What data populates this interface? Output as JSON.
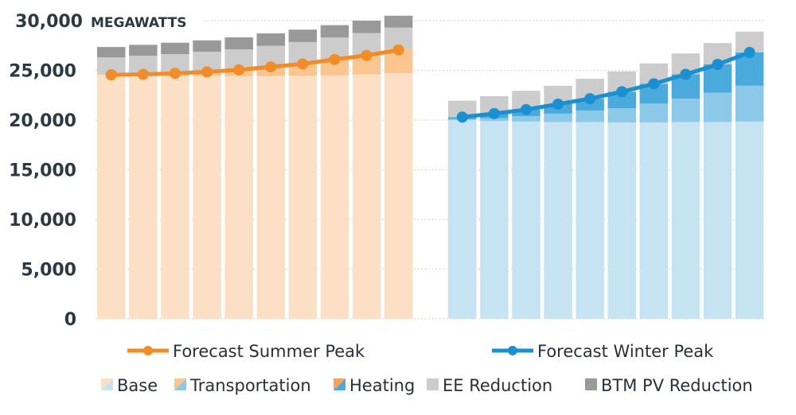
{
  "chart_data": {
    "type": "bar",
    "title": "",
    "ylabel": "MEGAWATTS",
    "xlabel": "",
    "ylim": [
      0,
      30000
    ],
    "yticks": [
      0,
      5000,
      10000,
      15000,
      20000,
      25000,
      30000
    ],
    "ytick_labels": [
      "0",
      "5,000",
      "10,000",
      "15,000",
      "20,000",
      "25,000",
      "30,000"
    ],
    "grid": true,
    "stacked": true,
    "groups": [
      {
        "name": "Summer",
        "bar_count": 10,
        "series": [
          {
            "name": "Base",
            "color": "#fce0c6",
            "values": [
              24550,
              24500,
              24480,
              24450,
              24420,
              24420,
              24450,
              24500,
              24580,
              24700
            ]
          },
          {
            "name": "Transportation",
            "color": "#fbc58f",
            "values": [
              50,
              120,
              250,
              420,
              650,
              950,
              1250,
              1650,
              2020,
              2450
            ]
          },
          {
            "name": "Heating",
            "color": "#f7a35c",
            "values": [
              0,
              0,
              0,
              0,
              0,
              0,
              0,
              0,
              0,
              0
            ]
          },
          {
            "name": "EE Reduction",
            "color": "#cccccc",
            "values": [
              1700,
              1850,
              1900,
              2000,
              2050,
              2100,
              2150,
              2150,
              2150,
              2150
            ]
          },
          {
            "name": "BTM PV Reduction",
            "color": "#999999",
            "values": [
              1050,
              1100,
              1150,
              1150,
              1200,
              1250,
              1250,
              1250,
              1250,
              1200
            ]
          }
        ],
        "line": {
          "name": "Forecast Summer Peak",
          "color": "#f28c28",
          "values": [
            24550,
            24600,
            24700,
            24850,
            25050,
            25350,
            25650,
            26100,
            26500,
            27050
          ]
        }
      },
      {
        "name": "Winter",
        "bar_count": 10,
        "series": [
          {
            "name": "Base",
            "color": "#c6e3f4",
            "values": [
              20000,
              19900,
              19850,
              19800,
              19800,
              19750,
              19750,
              19800,
              19800,
              19850
            ]
          },
          {
            "name": "Transportation",
            "color": "#8cc8e8",
            "values": [
              100,
              300,
              550,
              850,
              1150,
              1450,
              1900,
              2350,
              2950,
              3600
            ]
          },
          {
            "name": "Heating",
            "color": "#4aaadc",
            "values": [
              200,
              450,
              650,
              950,
              1200,
              1650,
              2000,
              2450,
              2850,
              3350
            ]
          },
          {
            "name": "EE Reduction",
            "color": "#cccccc",
            "values": [
              1650,
              1750,
              1900,
              1850,
              2000,
              2050,
              2050,
              2100,
              2150,
              2100
            ]
          },
          {
            "name": "BTM PV Reduction",
            "color": "#999999",
            "values": [
              0,
              0,
              0,
              0,
              0,
              0,
              0,
              0,
              0,
              0
            ]
          }
        ],
        "line": {
          "name": "Forecast Winter Peak",
          "color": "#1a8fd1",
          "values": [
            20300,
            20650,
            21050,
            21600,
            22150,
            22850,
            23650,
            24600,
            25600,
            26800
          ]
        }
      }
    ],
    "legend": {
      "placement": "bottom",
      "lines": [
        "Forecast Summer Peak",
        "Forecast Winter Peak"
      ],
      "areas": [
        "Base",
        "Transportation",
        "Heating",
        "EE Reduction",
        "BTM PV Reduction"
      ]
    }
  },
  "legend_swatches": {
    "Base": [
      "#fce0c6",
      "#c6e3f4"
    ],
    "Transportation": [
      "#fbc58f",
      "#8cc8e8"
    ],
    "Heating": [
      "#f7a35c",
      "#4aaadc"
    ],
    "EE Reduction": [
      "#cccccc",
      "#cccccc"
    ],
    "BTM PV Reduction": [
      "#999999",
      "#999999"
    ]
  }
}
